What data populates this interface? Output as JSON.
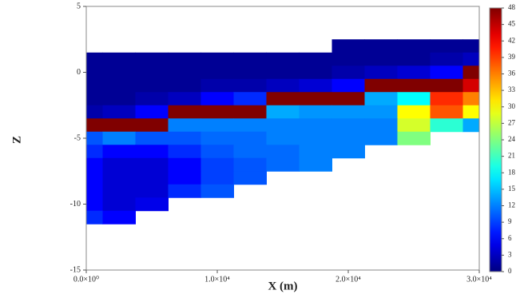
{
  "chart_data": {
    "type": "heatmap",
    "xlabel": "X (m)",
    "ylabel": "Z",
    "x": [
      0,
      2500,
      5000,
      7500,
      10000,
      12500,
      15000,
      17500,
      20000,
      22500,
      25000,
      27500,
      30000
    ],
    "y": [
      2,
      1,
      0,
      -1,
      -2,
      -3,
      -4,
      -5,
      -6,
      -7,
      -8,
      -9,
      -10,
      -11
    ],
    "values": [
      [
        null,
        null,
        null,
        null,
        null,
        null,
        null,
        null,
        1,
        1,
        1,
        1,
        1
      ],
      [
        1,
        1,
        1,
        1,
        1,
        1,
        1,
        1,
        1,
        1,
        1,
        2,
        3
      ],
      [
        1,
        1,
        1,
        1,
        1,
        1,
        1,
        1,
        2,
        3,
        4,
        6,
        48
      ],
      [
        1,
        1,
        1,
        1,
        2,
        2,
        3,
        4,
        6,
        48,
        48,
        48,
        44
      ],
      [
        1,
        1,
        2,
        3,
        6,
        8,
        48,
        48,
        48,
        14,
        18,
        40,
        36
      ],
      [
        2,
        3,
        6,
        48,
        48,
        48,
        14,
        13,
        13,
        13,
        30,
        38,
        30
      ],
      [
        48,
        48,
        48,
        12,
        12,
        12,
        12,
        12,
        12,
        12,
        28,
        20,
        14
      ],
      [
        10,
        12,
        10,
        10,
        11,
        11,
        12,
        12,
        12,
        12,
        24,
        null,
        null
      ],
      [
        8,
        6,
        6,
        8,
        10,
        11,
        11,
        12,
        12,
        null,
        null,
        null,
        null
      ],
      [
        6,
        4,
        4,
        6,
        9,
        10,
        11,
        12,
        null,
        null,
        null,
        null,
        null
      ],
      [
        6,
        4,
        4,
        6,
        9,
        10,
        null,
        null,
        null,
        null,
        null,
        null,
        null
      ],
      [
        6,
        4,
        4,
        8,
        10,
        null,
        null,
        null,
        null,
        null,
        null,
        null,
        null
      ],
      [
        6,
        4,
        5,
        null,
        null,
        null,
        null,
        null,
        null,
        null,
        null,
        null,
        null
      ],
      [
        8,
        6,
        null,
        null,
        null,
        null,
        null,
        null,
        null,
        null,
        null,
        null,
        null
      ]
    ],
    "xlim": [
      0,
      30000
    ],
    "ylim": [
      -15,
      5
    ],
    "xticks": [
      {
        "value": 0,
        "label": "0.0×10⁰"
      },
      {
        "value": 10000,
        "label": "1.0×10⁴"
      },
      {
        "value": 20000,
        "label": "2.0×10⁴"
      },
      {
        "value": 30000,
        "label": "3.0×10⁴"
      }
    ],
    "yticks": [
      5,
      0,
      -5,
      -10,
      -15
    ],
    "clim": [
      0,
      48
    ],
    "cticks": [
      0,
      3,
      6,
      9,
      12,
      15,
      18,
      21,
      24,
      27,
      30,
      33,
      36,
      39,
      42,
      45,
      48
    ],
    "colormap": "jet"
  }
}
